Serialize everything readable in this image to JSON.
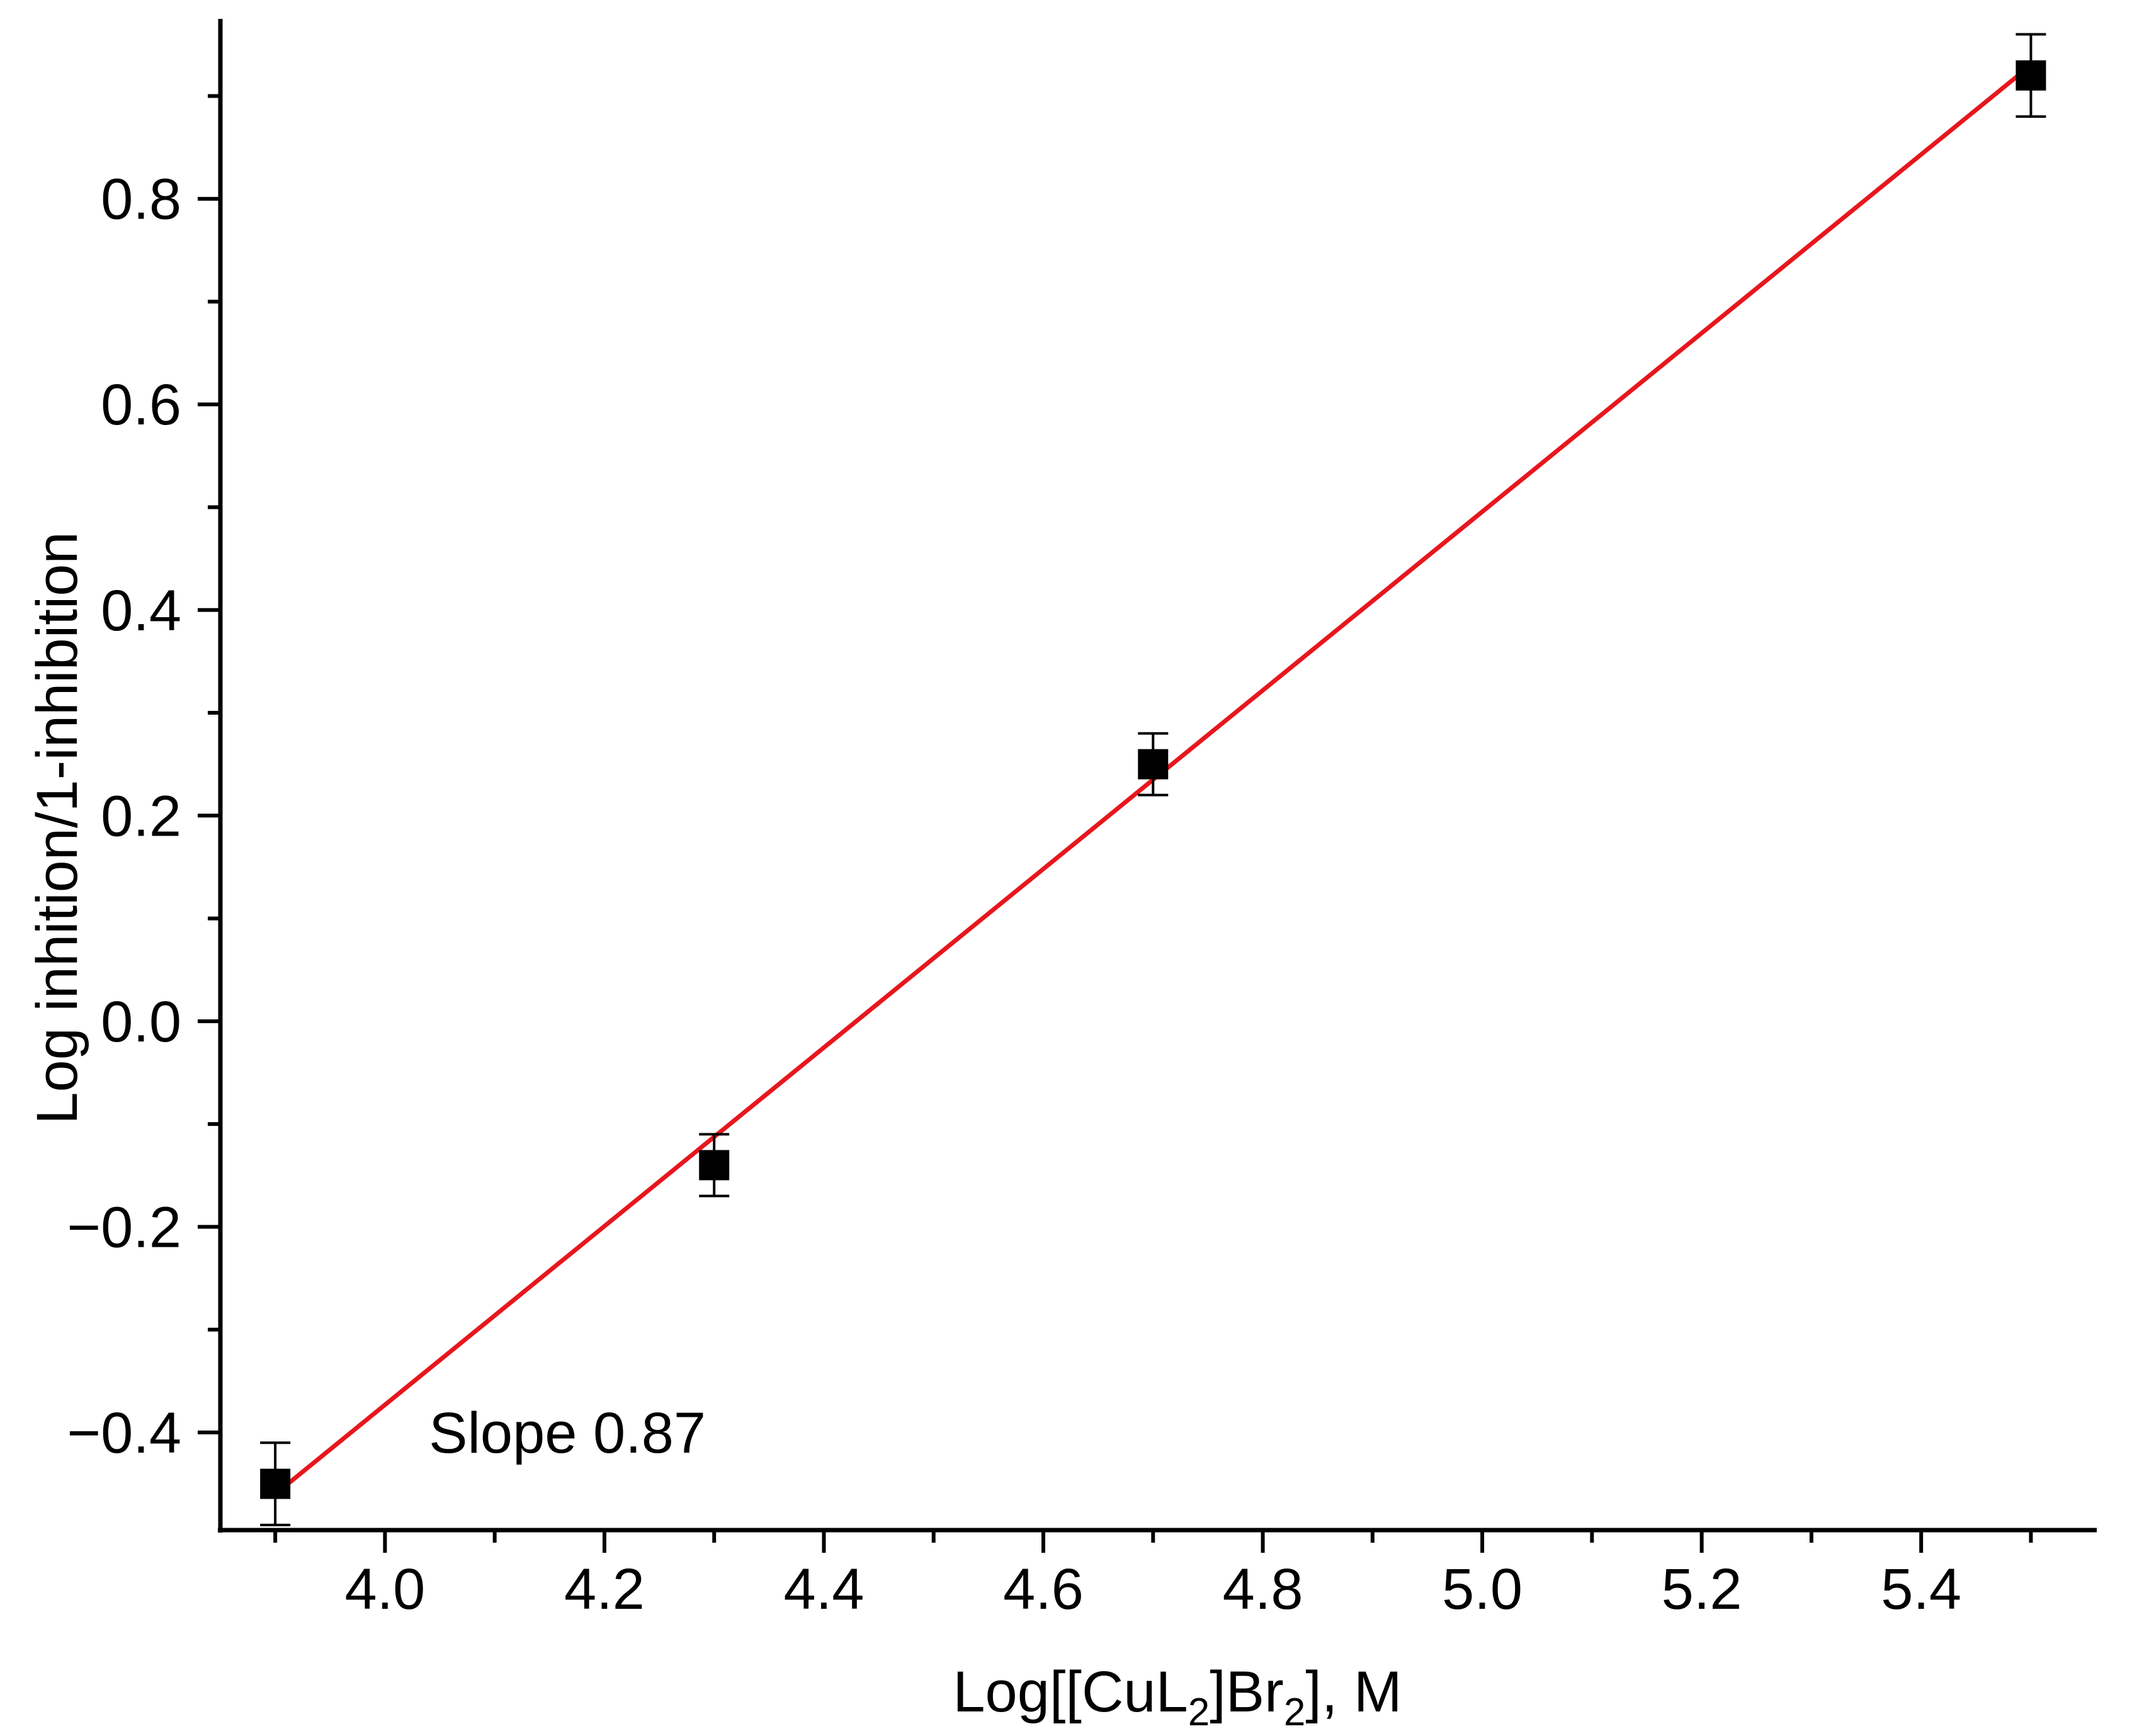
{
  "chart_data": {
    "type": "scatter",
    "title": "",
    "xlabel": {
      "main": "Log[[CuL",
      "sub1": "2",
      "mid": "]Br",
      "sub2": "2",
      "tail": "], M"
    },
    "ylabel": "Log inhition/1-inhibition",
    "xlim": [
      3.85,
      5.56
    ],
    "ylim": [
      -0.495,
      0.975
    ],
    "x_major_ticks": [
      4.0,
      4.2,
      4.4,
      4.6,
      4.8,
      5.0,
      5.2,
      5.4
    ],
    "x_tick_labels": [
      "4.0",
      "4.2",
      "4.4",
      "4.6",
      "4.8",
      "5.0",
      "5.2",
      "5.4"
    ],
    "x_minor_ticks": [
      3.9,
      4.1,
      4.3,
      4.5,
      4.7,
      4.9,
      5.1,
      5.3,
      5.5
    ],
    "y_major_ticks": [
      -0.4,
      -0.2,
      0.0,
      0.2,
      0.4,
      0.6,
      0.8
    ],
    "y_tick_labels": [
      "−0.4",
      "−0.2",
      "0.0",
      "0.2",
      "0.4",
      "0.6",
      "0.8"
    ],
    "y_minor_ticks": [
      -0.3,
      -0.1,
      0.1,
      0.3,
      0.5,
      0.7,
      0.9
    ],
    "grid": false,
    "series": [
      {
        "x": [
          3.9,
          4.3,
          4.7,
          5.5
        ],
        "y": [
          -0.45,
          -0.14,
          0.25,
          0.92
        ],
        "error": [
          0.04,
          0.03,
          0.03,
          0.04
        ],
        "marker": "square",
        "color": "#000000"
      }
    ],
    "fit_line": {
      "x": [
        3.9,
        5.5
      ],
      "y": [
        -0.46,
        0.93
      ],
      "color": "#e8161d"
    },
    "annotations": [
      {
        "text": "Slope 0.87",
        "x": 4.04,
        "y": -0.4
      }
    ]
  }
}
